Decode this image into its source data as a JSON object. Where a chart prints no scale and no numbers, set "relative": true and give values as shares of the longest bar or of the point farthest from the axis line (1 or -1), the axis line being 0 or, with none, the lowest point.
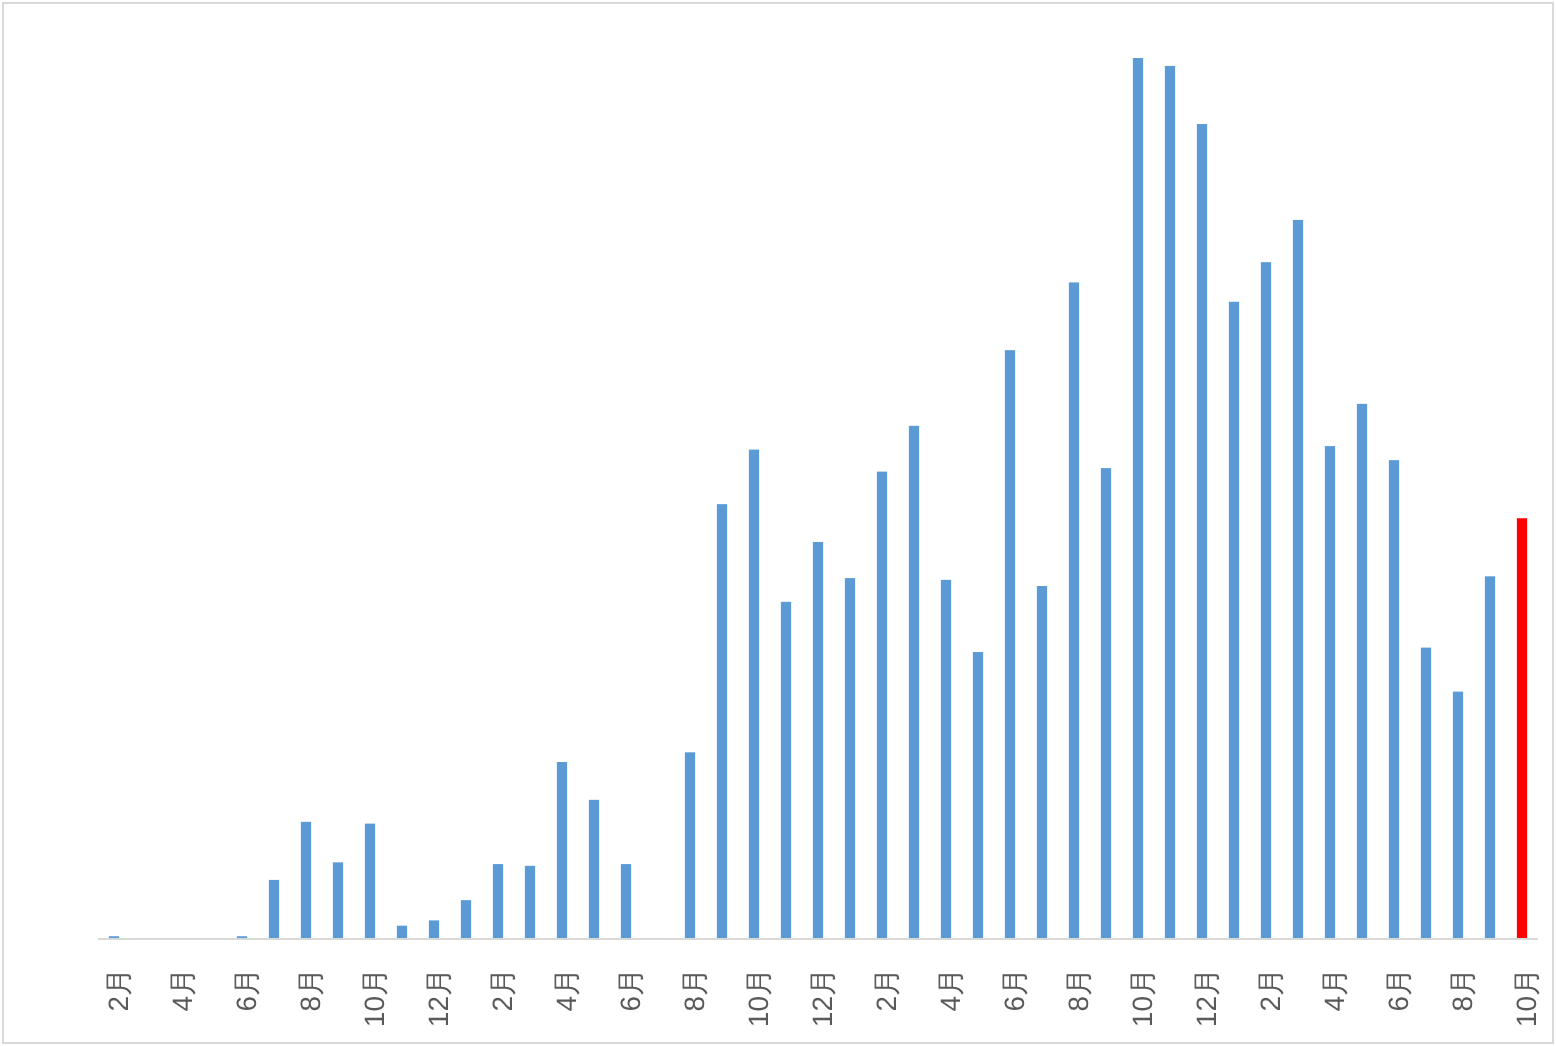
{
  "chart_data": {
    "type": "bar",
    "relative": true,
    "categories": [
      "2月",
      null,
      "4月",
      null,
      "6月",
      null,
      "8月",
      null,
      "10月",
      null,
      "12月",
      null,
      "2月",
      null,
      "4月",
      null,
      "6月",
      null,
      "8月",
      null,
      "10月",
      null,
      "12月",
      null,
      "2月",
      null,
      "4月",
      null,
      "6月",
      null,
      "8月",
      null,
      "10月",
      null,
      "12月",
      null,
      "2月",
      null,
      "4月",
      null,
      "6月",
      null,
      "8月",
      null,
      "10月"
    ],
    "values": [
      0.002,
      0,
      0,
      0,
      0.002,
      0.066,
      0.132,
      0.086,
      0.13,
      0.014,
      0.02,
      0.043,
      0.084,
      0.082,
      0.2,
      0.157,
      0.084,
      0,
      0.211,
      0.493,
      0.555,
      0.382,
      0.45,
      0.409,
      0.53,
      0.582,
      0.407,
      0.325,
      0.668,
      0.4,
      0.745,
      0.534,
      1,
      0.991,
      0.925,
      0.723,
      0.768,
      0.816,
      0.559,
      0.607,
      0.543,
      0.33,
      0.28,
      0.411,
      0.477
    ],
    "colors": [
      "#5b9bd5",
      "#5b9bd5",
      "#5b9bd5",
      "#5b9bd5",
      "#5b9bd5",
      "#5b9bd5",
      "#5b9bd5",
      "#5b9bd5",
      "#5b9bd5",
      "#5b9bd5",
      "#5b9bd5",
      "#5b9bd5",
      "#5b9bd5",
      "#5b9bd5",
      "#5b9bd5",
      "#5b9bd5",
      "#5b9bd5",
      "#5b9bd5",
      "#5b9bd5",
      "#5b9bd5",
      "#5b9bd5",
      "#5b9bd5",
      "#5b9bd5",
      "#5b9bd5",
      "#5b9bd5",
      "#5b9bd5",
      "#5b9bd5",
      "#5b9bd5",
      "#5b9bd5",
      "#5b9bd5",
      "#5b9bd5",
      "#5b9bd5",
      "#5b9bd5",
      "#5b9bd5",
      "#5b9bd5",
      "#5b9bd5",
      "#5b9bd5",
      "#5b9bd5",
      "#5b9bd5",
      "#5b9bd5",
      "#5b9bd5",
      "#5b9bd5",
      "#5b9bd5",
      "#5b9bd5",
      "#ff0000"
    ]
  }
}
